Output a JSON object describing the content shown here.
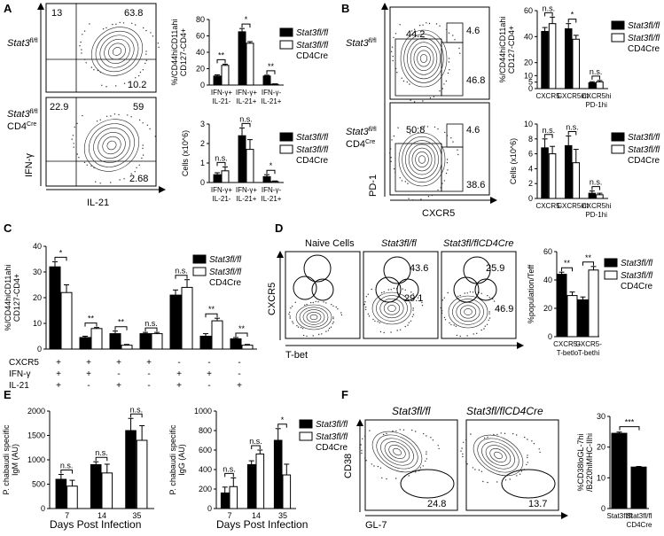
{
  "panels": {
    "A": {
      "label": "A",
      "flow": {
        "rows": [
          {
            "name": "Stat3",
            "sup": "fl/fl",
            "line2": "",
            "line2sup": "",
            "quads": [
              "13",
              "63.8",
              "10.2"
            ]
          },
          {
            "name": "Stat3",
            "sup": "fl/fl",
            "line2": "CD4",
            "line2sup": "Cre",
            "quads": [
              "22.9",
              "59",
              "2.68"
            ]
          }
        ],
        "xlabel": "IL-21",
        "ylabel": "IFN-γ"
      }
    },
    "B": {
      "label": "B",
      "flow": {
        "rows": [
          {
            "name": "Stat3",
            "sup": "fl/fl",
            "line2": "",
            "line2sup": "",
            "gates": [
              "44.2",
              "4.6",
              "46.8"
            ]
          },
          {
            "name": "Stat3",
            "sup": "fl/fl",
            "line2": "CD4",
            "line2sup": "Cre",
            "gates": [
              "50.8",
              "4.6",
              "38.6"
            ]
          }
        ],
        "xlabel": "CXCR5",
        "ylabel": "PD-1"
      }
    },
    "C": {
      "label": "C",
      "matrix": {
        "rows": [
          {
            "label": "CXCR5",
            "marks": [
              "+",
              "+",
              "+",
              "+",
              "-",
              "-",
              "-"
            ]
          },
          {
            "label": "IFN-γ",
            "marks": [
              "+",
              "+",
              "-",
              "-",
              "+",
              "+",
              "-"
            ]
          },
          {
            "label": "IL-21",
            "marks": [
              "+",
              "-",
              "+",
              "-",
              "+",
              "-",
              "+"
            ]
          }
        ]
      }
    },
    "D": {
      "label": "D",
      "flow": {
        "titles": [
          "Naive Cells",
          "Stat3fl/fl",
          "Stat3fl/flCD4Cre"
        ],
        "gates": [
          [
            "",
            "",
            ""
          ],
          [
            "43.6",
            "29.1",
            ""
          ],
          [
            "25.9",
            "46.9",
            ""
          ]
        ],
        "xlabel": "T-bet",
        "ylabel": "CXCR5"
      }
    },
    "E": {
      "label": "E",
      "xlabel": "Days Post Infection"
    },
    "F": {
      "label": "F",
      "flow": {
        "titles": [
          "Stat3fl/fl",
          "Stat3fl/flCD4Cre"
        ],
        "gates": [
          "24.8",
          "13.7"
        ],
        "xlabel": "GL-7",
        "ylabel": "CD38"
      }
    }
  },
  "legend": {
    "wt": "Stat3fl/fl",
    "ko_line1": "Stat3fl/fl",
    "ko_line2": "CD4Cre"
  },
  "chart_data": [
    {
      "id": "A-top",
      "type": "bar",
      "ylabel": "%/CD44hiCD11ahi CD127-CD4+",
      "ylim": [
        0,
        80
      ],
      "yticks": [
        0,
        20,
        40,
        60,
        80
      ],
      "categories": [
        "IFN-γ+ IL-21-",
        "IFN-γ+ IL-21+",
        "IFN-γ- IL-21+"
      ],
      "series": [
        {
          "name": "Stat3fl/fl",
          "values": [
            11,
            65,
            11
          ],
          "errors": [
            1.5,
            4,
            1
          ]
        },
        {
          "name": "Stat3fl/fl CD4Cre",
          "values": [
            24,
            51,
            1
          ],
          "errors": [
            1.5,
            2,
            0.5
          ]
        }
      ],
      "significance": [
        "**",
        "*",
        "**"
      ]
    },
    {
      "id": "A-bottom",
      "type": "bar",
      "ylabel": "Cells (x10^6)",
      "ylim": [
        0,
        3
      ],
      "yticks": [
        0,
        1,
        2,
        3
      ],
      "categories": [
        "IFN-γ+ IL-21-",
        "IFN-γ+ IL-21+",
        "IFN-γ- IL-21+"
      ],
      "series": [
        {
          "name": "Stat3fl/fl",
          "values": [
            0.4,
            2.4,
            0.3
          ],
          "errors": [
            0.1,
            0.4,
            0.1
          ]
        },
        {
          "name": "Stat3fl/fl CD4Cre",
          "values": [
            0.6,
            1.7,
            0.05
          ],
          "errors": [
            0.2,
            0.5,
            0.03
          ]
        }
      ],
      "significance": [
        "n.s.",
        "n.s.",
        "*"
      ]
    },
    {
      "id": "B-top",
      "type": "bar",
      "ylabel": "%/CD44hiCD11ahi CD127-CD4+",
      "ylim": [
        0,
        60
      ],
      "yticks": [
        0,
        5,
        10,
        20,
        40,
        60
      ],
      "categories": [
        "CXCR5-",
        "CXCR5int",
        "CXCR5hi PD-1hi"
      ],
      "series": [
        {
          "name": "Stat3fl/fl",
          "values": [
            44,
            46,
            4.5
          ],
          "errors": [
            3,
            4,
            0.8
          ]
        },
        {
          "name": "Stat3fl/fl CD4Cre",
          "values": [
            50,
            38,
            5.2
          ],
          "errors": [
            5,
            3,
            1
          ]
        }
      ],
      "significance": [
        "n.s.",
        "*",
        "n.s."
      ]
    },
    {
      "id": "B-bottom",
      "type": "bar",
      "ylabel": "Cells (x10^6)",
      "ylim": [
        0,
        10
      ],
      "yticks": [
        0,
        2,
        4,
        6,
        8,
        10
      ],
      "categories": [
        "CXCR5-",
        "CXCR5int",
        "CXCR5hi PD-1hi"
      ],
      "series": [
        {
          "name": "Stat3fl/fl",
          "values": [
            6.8,
            7.1,
            0.7
          ],
          "errors": [
            1.2,
            1.3,
            0.3
          ]
        },
        {
          "name": "Stat3fl/fl CD4Cre",
          "values": [
            6.0,
            4.8,
            0.5
          ],
          "errors": [
            1.0,
            1.8,
            0.2
          ]
        }
      ],
      "significance": [
        "n.s.",
        "n.s.",
        "n.s."
      ]
    },
    {
      "id": "C",
      "type": "bar",
      "ylabel": "%/CD44hiCD11ahi CD127-CD4+",
      "ylim": [
        0,
        40
      ],
      "yticks": [
        0,
        10,
        20,
        30,
        40
      ],
      "categories": [
        "1",
        "2",
        "3",
        "4",
        "5",
        "6",
        "7"
      ],
      "series": [
        {
          "name": "Stat3fl/fl",
          "values": [
            32,
            4.5,
            6,
            6,
            21,
            5,
            4
          ],
          "errors": [
            2,
            0.5,
            1,
            0.5,
            2,
            1,
            0.5
          ]
        },
        {
          "name": "Stat3fl/fl CD4Cre",
          "values": [
            22,
            8,
            1.5,
            6,
            24,
            11,
            1.5
          ],
          "errors": [
            3,
            0.4,
            0.3,
            0.5,
            3,
            1,
            0.3
          ]
        }
      ],
      "significance": [
        "*",
        "**",
        "**",
        "n.s.",
        "n.s.",
        "**",
        "**"
      ]
    },
    {
      "id": "D",
      "type": "bar",
      "ylabel": "%population/Teff",
      "ylim": [
        0,
        60
      ],
      "yticks": [
        0,
        20,
        40,
        60
      ],
      "categories": [
        "CXCR5+ T-betlo",
        "CXCR5- T-bethi"
      ],
      "series": [
        {
          "name": "Stat3fl/fl",
          "values": [
            44,
            26
          ],
          "errors": [
            1.5,
            2
          ]
        },
        {
          "name": "Stat3fl/fl CD4Cre",
          "values": [
            29,
            47
          ],
          "errors": [
            2.5,
            2.5
          ]
        }
      ],
      "significance": [
        "**",
        "**"
      ]
    },
    {
      "id": "E-left",
      "type": "bar",
      "ylabel": "P. chabaudi specific IgM (AU)",
      "ylim": [
        0,
        2000
      ],
      "yticks": [
        0,
        500,
        1000,
        1500,
        2000
      ],
      "categories": [
        "7",
        "14",
        "35"
      ],
      "series": [
        {
          "name": "Stat3fl/fl",
          "values": [
            600,
            900,
            1600
          ],
          "errors": [
            100,
            60,
            250
          ]
        },
        {
          "name": "Stat3fl/fl CD4Cre",
          "values": [
            460,
            730,
            1400
          ],
          "errors": [
            120,
            180,
            300
          ]
        }
      ],
      "significance": [
        "n.s.",
        "n.s.",
        "n.s."
      ]
    },
    {
      "id": "E-right",
      "type": "bar",
      "ylabel": "P. chabaudi specific IgG (AU)",
      "ylim": [
        0,
        1000
      ],
      "yticks": [
        0,
        200,
        400,
        600,
        800,
        1000
      ],
      "categories": [
        "7",
        "14",
        "35"
      ],
      "series": [
        {
          "name": "Stat3fl/fl",
          "values": [
            160,
            450,
            700
          ],
          "errors": [
            60,
            40,
            120
          ]
        },
        {
          "name": "Stat3fl/fl CD4Cre",
          "values": [
            225,
            560,
            345
          ],
          "errors": [
            90,
            40,
            110
          ]
        }
      ],
      "significance": [
        "n.s.",
        "n.s.",
        "*"
      ]
    },
    {
      "id": "F",
      "type": "bar",
      "ylabel": "%CD38loGL-7hi /B220hiMHC-IIhi",
      "ylim": [
        0,
        30
      ],
      "yticks": [
        0,
        10,
        20,
        30
      ],
      "categories": [
        "Stat3fl/fl",
        "Stat3fl/fl CD4Cre"
      ],
      "series": [
        {
          "name": "value",
          "values": [
            24.5,
            13.5
          ],
          "errors": [
            0.4,
            0.2
          ]
        }
      ],
      "significance": [
        "***"
      ]
    }
  ]
}
